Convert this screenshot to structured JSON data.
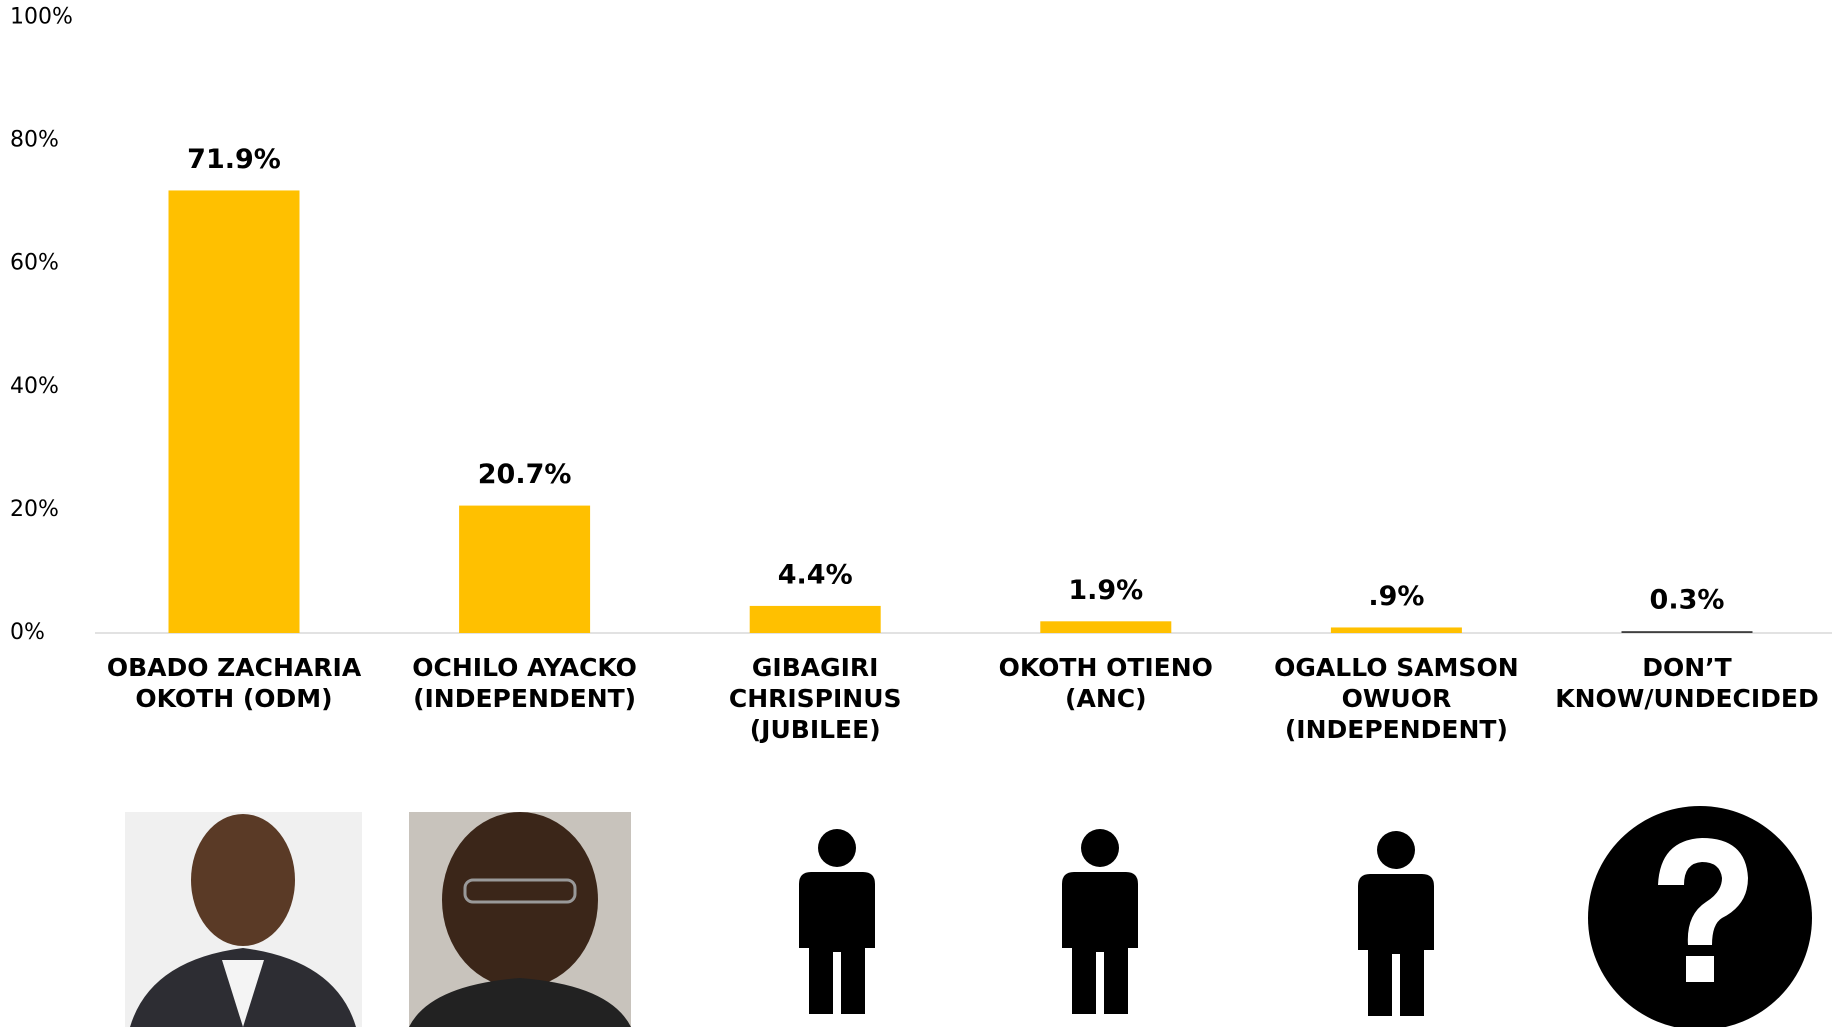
{
  "chart_data": {
    "type": "bar",
    "categories": [
      "OBADO ZACHARIA OKOTH (ODM)",
      "OCHILO AYACKO (INDEPENDENT)",
      "GIBAGIRI CHRISPINUS (JUBILEE)",
      "OKOTH OTIENO (ANC)",
      "OGALLO SAMSON OWUOR (INDEPENDENT)",
      "DON’T KNOW/UNDECIDED"
    ],
    "values": [
      71.9,
      20.7,
      4.4,
      1.9,
      0.9,
      0.3
    ],
    "value_labels": [
      "71.9%",
      "20.7%",
      "4.4%",
      "1.9%",
      ".9%",
      "0.3%"
    ],
    "colors": [
      "#FFC000",
      "#FFC000",
      "#FFC000",
      "#FFC000",
      "#FFC000",
      "#404040"
    ],
    "ylim": [
      0,
      100
    ],
    "yticks": [
      {
        "value": 0,
        "label": "0%"
      },
      {
        "value": 20,
        "label": "20%"
      },
      {
        "value": 40,
        "label": "40%"
      },
      {
        "value": 60,
        "label": "60%"
      },
      {
        "value": 80,
        "label": "80%"
      },
      {
        "value": 100,
        "label": "100%"
      }
    ],
    "grid": false
  }
}
